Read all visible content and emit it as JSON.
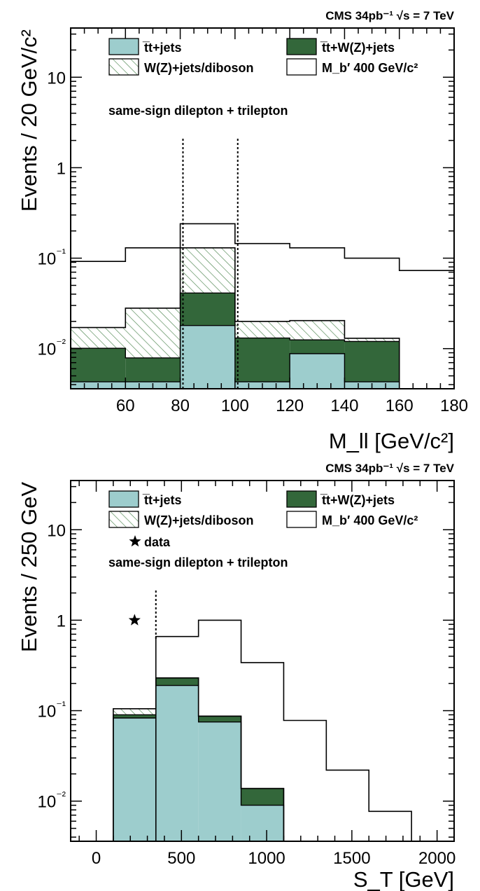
{
  "chart_data": [
    {
      "type": "histogram",
      "header": "CMS 34pb⁻¹ √s = 7 TeV",
      "annotation": "same-sign dilepton + trilepton",
      "xlabel": "M_ll [GeV/c²]",
      "ylabel": "Events / 20 GeV/c²",
      "xlim": [
        40,
        180
      ],
      "ylim": [
        0.0036,
        35
      ],
      "yscale": "log",
      "x_ticks": [
        60,
        80,
        100,
        120,
        140,
        160,
        180
      ],
      "y_ticks": [
        {
          "value": 0.01,
          "label": "10⁻²"
        },
        {
          "value": 0.1,
          "label": "10⁻¹"
        },
        {
          "value": 1,
          "label": "1"
        },
        {
          "value": 10,
          "label": "10"
        }
      ],
      "bin_edges": [
        40,
        60,
        80,
        100,
        120,
        140,
        160,
        180
      ],
      "stack": [
        {
          "name": "t̅t+jets",
          "color": "#9dcdcd",
          "values": [
            0.0043,
            0.0043,
            0.018,
            0.0043,
            0.0088,
            0.0043,
            0.0036
          ]
        },
        {
          "name": "t̅t+W(Z)+jets",
          "color": "#33673a",
          "values": [
            0.0058,
            0.0036,
            0.0232,
            0.0088,
            0.0037,
            0.0077,
            0.0
          ]
        },
        {
          "name": "W(Z)+jets/diboson",
          "color": "hatch",
          "values": [
            0.007,
            0.0201,
            0.0888,
            0.0069,
            0.0079,
            0.001,
            0.0
          ]
        }
      ],
      "signal": {
        "name": "M_b′ 400 GeV/c²",
        "values": [
          0.092,
          0.13,
          0.24,
          0.145,
          0.13,
          0.1,
          0.073
        ]
      },
      "cut_lines": [
        81,
        101
      ],
      "legend": [
        {
          "key": "ttjets",
          "label": "t̅t+jets"
        },
        {
          "key": "ttv",
          "label": "t̅t+W(Z)+jets"
        },
        {
          "key": "wz",
          "label": "W(Z)+jets/diboson"
        },
        {
          "key": "sig",
          "label": "M_b′ 400 GeV/c²"
        }
      ]
    },
    {
      "type": "histogram",
      "header": "CMS 34pb⁻¹ √s = 7 TeV",
      "annotation": "same-sign dilepton + trilepton",
      "xlabel": "S_T [GeV]",
      "ylabel": "Events / 250 GeV",
      "xlim": [
        -150,
        2100
      ],
      "ylim": [
        0.0036,
        35
      ],
      "yscale": "log",
      "x_ticks": [
        0,
        500,
        1000,
        1500,
        2000
      ],
      "y_ticks": [
        {
          "value": 0.01,
          "label": "10⁻²"
        },
        {
          "value": 0.1,
          "label": "10⁻¹"
        },
        {
          "value": 1,
          "label": "1"
        },
        {
          "value": 10,
          "label": "10"
        }
      ],
      "bin_edges": [
        -150,
        100,
        350,
        600,
        850,
        1100,
        1350,
        1600,
        1850,
        2100
      ],
      "stack": [
        {
          "name": "t̅t+jets",
          "color": "#9dcdcd",
          "values": [
            0.0,
            0.083,
            0.19,
            0.075,
            0.009,
            0.0,
            0.0,
            0.0,
            0.0
          ]
        },
        {
          "name": "t̅t+W(Z)+jets",
          "color": "#33673a",
          "values": [
            0.0,
            0.007,
            0.04,
            0.012,
            0.0048,
            0.0,
            0.0,
            0.0,
            0.0
          ]
        },
        {
          "name": "W(Z)+jets/diboson",
          "color": "hatch",
          "values": [
            0.0,
            0.015,
            0.0,
            0.0,
            0.0,
            0.0,
            0.0,
            0.0,
            0.0
          ]
        }
      ],
      "signal": {
        "name": "M_b′ 400 GeV/c²",
        "values": [
          0.0036,
          0.0036,
          0.66,
          1.0,
          0.34,
          0.078,
          0.022,
          0.0077,
          0.0036
        ]
      },
      "data_points": [
        {
          "x": 225,
          "y": 1,
          "label": "data"
        }
      ],
      "cut_lines": [
        350
      ],
      "legend": [
        {
          "key": "ttjets",
          "label": "t̅t+jets"
        },
        {
          "key": "ttv",
          "label": "t̅t+W(Z)+jets"
        },
        {
          "key": "wz",
          "label": "W(Z)+jets/diboson"
        },
        {
          "key": "sig",
          "label": "M_b′ 400 GeV/c²"
        },
        {
          "key": "data",
          "label": "data"
        }
      ]
    }
  ]
}
